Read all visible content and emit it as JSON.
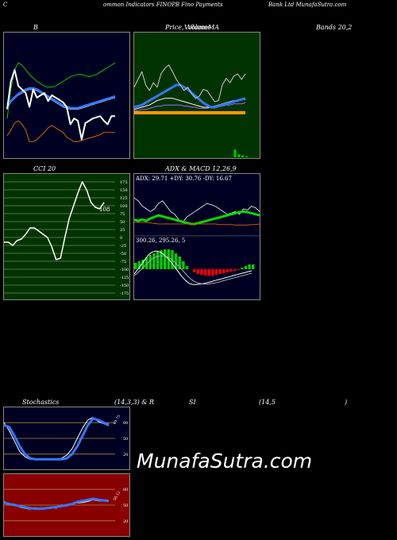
{
  "header": {
    "c": "C",
    "indicators": "ommon  Indicators FINOPB Fino  Payments",
    "bank": "Bank Ltd MunafaSutra.com"
  },
  "labels": {
    "bb": "B",
    "price": "Price,",
    "volume": "Volume",
    "ma": "MA",
    "ma_overlap": "Volume",
    "bands": "Bands 20,2",
    "cci": "CCI 20",
    "adx": "ADX  & MACD 12,26,9",
    "stoch": "Stochastics",
    "stoch_params": "(14,3,3) & R",
    "si": "SI",
    "rsi_params": "(14,5",
    "rsi_close": ")"
  },
  "colors": {
    "bb_bg": "#000022",
    "ma_bg": "#003300",
    "cci_bg": "#003300",
    "adx_bg": "#000022",
    "stoch_bg": "#000022",
    "rsi_bg": "#880000",
    "blue": "#3377ff",
    "green": "#00cc00",
    "orange": "#cc6600"
  },
  "chart_data": [
    {
      "type": "line",
      "name": "bollinger-bands",
      "series": [
        {
          "values": [
            30,
            55,
            72,
            78,
            76,
            72,
            68,
            65,
            62,
            60,
            58,
            57,
            57,
            58,
            60,
            62,
            64,
            66,
            67,
            68,
            68,
            67,
            66,
            67,
            68,
            70,
            72,
            74,
            76,
            78
          ]
        },
        {
          "values": [
            38,
            62,
            72,
            58,
            55,
            52,
            40,
            55,
            48,
            50,
            52,
            45,
            50,
            48,
            46,
            44,
            40,
            25,
            30,
            28,
            12,
            26,
            28,
            30,
            31,
            32,
            28,
            25,
            32,
            32
          ]
        },
        {
          "values": [
            42,
            45,
            48,
            51,
            53,
            55,
            56,
            56,
            55,
            53,
            51,
            49,
            47,
            45,
            43,
            41,
            40,
            39,
            39,
            39,
            40,
            41,
            42,
            43,
            44,
            45,
            46,
            47,
            48,
            49
          ]
        },
        {
          "values": [
            40,
            44,
            48,
            50,
            52,
            54,
            55,
            55,
            54,
            52,
            50,
            48,
            46,
            44,
            42,
            40,
            39,
            38,
            38,
            38,
            39,
            40,
            41,
            42,
            43,
            44,
            45,
            46,
            47,
            48
          ]
        },
        {
          "values": [
            15,
            20,
            26,
            28,
            25,
            20,
            10,
            10,
            12,
            15,
            18,
            22,
            24,
            22,
            20,
            18,
            14,
            12,
            10,
            10,
            11,
            12,
            13,
            14,
            15,
            16,
            18,
            18,
            18,
            18
          ]
        }
      ]
    },
    {
      "type": "line",
      "name": "price-volume-ma",
      "series": [
        {
          "values": [
            58,
            65,
            72,
            60,
            55,
            62,
            58,
            70,
            75,
            78,
            72,
            65,
            60,
            55,
            58,
            52,
            48,
            50,
            56,
            55,
            50,
            45,
            46,
            60,
            66,
            62,
            68,
            70,
            65,
            70
          ]
        },
        {
          "values": [
            40,
            41,
            42,
            44,
            46,
            48,
            50,
            52,
            54,
            56,
            58,
            60,
            60,
            58,
            56,
            53,
            50,
            47,
            44,
            42,
            40,
            40,
            41,
            42,
            43,
            44,
            45,
            46,
            47,
            48
          ]
        },
        {
          "values": [
            38,
            39,
            40,
            41,
            42,
            44,
            46,
            47,
            48,
            48,
            48,
            47,
            46,
            45,
            44,
            43,
            42,
            41,
            40,
            40,
            40,
            41,
            42,
            43,
            44,
            45,
            46,
            46,
            47,
            47
          ]
        },
        {
          "values": [
            37,
            37,
            38,
            38,
            39,
            40,
            41,
            41,
            42,
            42,
            42,
            42,
            42,
            41,
            41,
            40,
            40,
            39,
            39,
            39,
            40,
            40,
            41,
            41,
            42,
            42,
            43,
            43,
            43,
            44
          ]
        },
        {
          "values": [
            35,
            35,
            35,
            35,
            35,
            35,
            35,
            35,
            35,
            35,
            35,
            35,
            35,
            35,
            35,
            35,
            35,
            35,
            35,
            35,
            35,
            35,
            35,
            35,
            35,
            35,
            35,
            35,
            35,
            35
          ]
        }
      ],
      "volume": [
        0,
        0,
        0,
        0,
        0,
        0,
        0,
        0,
        0,
        0,
        0,
        0,
        0,
        0,
        0,
        0,
        0,
        0,
        0,
        0,
        0,
        0,
        0,
        0,
        0,
        0,
        8,
        3,
        2,
        1
      ]
    },
    {
      "type": "line",
      "name": "cci",
      "yticks": [
        "175",
        "150",
        "125",
        "100",
        "75",
        "50",
        "25",
        "0",
        "-25",
        "-50",
        "-75",
        "-100",
        "-125",
        "-150",
        "-175"
      ],
      "ylim": [
        -175,
        175
      ],
      "last_label": "108",
      "series": [
        {
          "values": [
            -15,
            -15,
            -25,
            -10,
            -5,
            10,
            30,
            30,
            20,
            10,
            0,
            -30,
            -70,
            -65,
            0,
            60,
            100,
            140,
            175,
            150,
            110,
            95,
            90,
            110
          ]
        }
      ]
    },
    {
      "type": "line",
      "name": "adx",
      "readout": "ADX: 29.71 +DY: 30.76  -DY: 16.67",
      "series": [
        {
          "values": [
            70,
            65,
            55,
            50,
            45,
            50,
            60,
            65,
            55,
            45,
            40,
            30,
            25,
            35,
            40,
            45,
            50,
            55,
            60,
            58,
            55,
            50,
            45,
            40,
            42,
            45,
            40,
            50,
            48,
            55,
            52,
            45
          ]
        },
        {
          "values": [
            30,
            28,
            30,
            28,
            32,
            35,
            38,
            36,
            34,
            32,
            30,
            28,
            26,
            24,
            22,
            22,
            24,
            26,
            28,
            30,
            32,
            34,
            36,
            38,
            40,
            42,
            44,
            45,
            44,
            42,
            40,
            38
          ]
        },
        {
          "values": [
            25,
            25,
            25,
            25,
            24,
            23,
            22,
            22,
            22,
            22,
            22,
            22,
            22,
            22,
            22,
            22,
            22,
            22,
            22,
            22,
            22,
            21,
            21,
            21,
            21,
            20,
            20,
            20,
            20,
            21,
            21,
            22
          ]
        }
      ]
    },
    {
      "type": "bar",
      "name": "macd",
      "readout": "300.26,   295.26,   5",
      "histogram": [
        8,
        10,
        12,
        15,
        18,
        20,
        22,
        24,
        25,
        25,
        24,
        20,
        16,
        10,
        4,
        0,
        -4,
        -6,
        -7,
        -8,
        -8,
        -8,
        -7,
        -6,
        -5,
        -4,
        -3,
        -2,
        -1,
        2,
        4,
        6,
        6
      ],
      "series": [
        {
          "values": [
            5,
            15,
            25,
            35,
            45,
            50,
            52,
            50,
            45,
            38,
            30,
            20,
            10,
            0,
            -8,
            -14,
            -16,
            -16,
            -15,
            -14,
            -12,
            -10,
            -8,
            -6,
            -4,
            -2,
            0,
            2,
            4,
            6,
            8,
            10,
            12
          ]
        },
        {
          "values": [
            2,
            8,
            15,
            22,
            30,
            36,
            40,
            42,
            42,
            40,
            36,
            30,
            22,
            14,
            6,
            -2,
            -8,
            -12,
            -14,
            -15,
            -15,
            -14,
            -13,
            -11,
            -9,
            -7,
            -5,
            -3,
            -1,
            1,
            3,
            5,
            7
          ]
        }
      ]
    },
    {
      "type": "line",
      "name": "stochastics",
      "yticks": [
        "80",
        "50",
        "20"
      ],
      "ylim": [
        0,
        100
      ],
      "last_label": "69.75",
      "series": [
        {
          "values": [
            75,
            72,
            55,
            35,
            20,
            12,
            10,
            10,
            10,
            10,
            10,
            10,
            12,
            20,
            35,
            55,
            75,
            88,
            85,
            80,
            76
          ]
        },
        {
          "values": [
            80,
            65,
            45,
            25,
            15,
            10,
            10,
            10,
            10,
            10,
            10,
            12,
            18,
            30,
            50,
            70,
            85,
            90,
            82,
            78,
            74
          ]
        }
      ]
    },
    {
      "type": "line",
      "name": "rsi",
      "yticks": [
        "80",
        "50",
        "20"
      ],
      "ylim": [
        0,
        100
      ],
      "last_label": "58.12",
      "series": [
        {
          "values": [
            55,
            52,
            50,
            48,
            46,
            44,
            43,
            43,
            44,
            45,
            46,
            48,
            50,
            52,
            56,
            58,
            60,
            62,
            60,
            59,
            58
          ]
        },
        {
          "values": [
            57,
            50,
            52,
            46,
            44,
            42,
            45,
            42,
            44,
            46,
            44,
            50,
            48,
            53,
            54,
            55,
            57,
            60,
            58,
            58,
            57
          ]
        }
      ]
    }
  ],
  "watermark": "MunafaSutra.com"
}
